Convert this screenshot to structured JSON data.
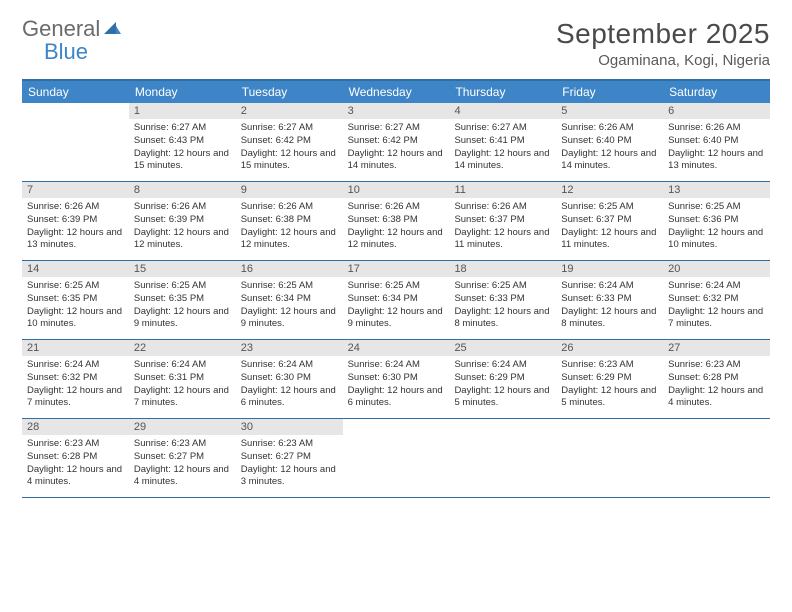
{
  "brand": {
    "line1": "General",
    "line2": "Blue"
  },
  "title": "September 2025",
  "location": "Ogaminana, Kogi, Nigeria",
  "colors": {
    "header_bar": "#3d85c6",
    "border": "#2f6fa8",
    "daynum_bg": "#e6e6e6",
    "text": "#3a3a3a",
    "title_text": "#4a4a4a"
  },
  "dow": [
    "Sunday",
    "Monday",
    "Tuesday",
    "Wednesday",
    "Thursday",
    "Friday",
    "Saturday"
  ],
  "layout": {
    "first_weekday_index": 1,
    "days_in_month": 30,
    "weeks": 5
  },
  "days": {
    "1": {
      "sunrise": "6:27 AM",
      "sunset": "6:43 PM",
      "daylight": "12 hours and 15 minutes."
    },
    "2": {
      "sunrise": "6:27 AM",
      "sunset": "6:42 PM",
      "daylight": "12 hours and 15 minutes."
    },
    "3": {
      "sunrise": "6:27 AM",
      "sunset": "6:42 PM",
      "daylight": "12 hours and 14 minutes."
    },
    "4": {
      "sunrise": "6:27 AM",
      "sunset": "6:41 PM",
      "daylight": "12 hours and 14 minutes."
    },
    "5": {
      "sunrise": "6:26 AM",
      "sunset": "6:40 PM",
      "daylight": "12 hours and 14 minutes."
    },
    "6": {
      "sunrise": "6:26 AM",
      "sunset": "6:40 PM",
      "daylight": "12 hours and 13 minutes."
    },
    "7": {
      "sunrise": "6:26 AM",
      "sunset": "6:39 PM",
      "daylight": "12 hours and 13 minutes."
    },
    "8": {
      "sunrise": "6:26 AM",
      "sunset": "6:39 PM",
      "daylight": "12 hours and 12 minutes."
    },
    "9": {
      "sunrise": "6:26 AM",
      "sunset": "6:38 PM",
      "daylight": "12 hours and 12 minutes."
    },
    "10": {
      "sunrise": "6:26 AM",
      "sunset": "6:38 PM",
      "daylight": "12 hours and 12 minutes."
    },
    "11": {
      "sunrise": "6:26 AM",
      "sunset": "6:37 PM",
      "daylight": "12 hours and 11 minutes."
    },
    "12": {
      "sunrise": "6:25 AM",
      "sunset": "6:37 PM",
      "daylight": "12 hours and 11 minutes."
    },
    "13": {
      "sunrise": "6:25 AM",
      "sunset": "6:36 PM",
      "daylight": "12 hours and 10 minutes."
    },
    "14": {
      "sunrise": "6:25 AM",
      "sunset": "6:35 PM",
      "daylight": "12 hours and 10 minutes."
    },
    "15": {
      "sunrise": "6:25 AM",
      "sunset": "6:35 PM",
      "daylight": "12 hours and 9 minutes."
    },
    "16": {
      "sunrise": "6:25 AM",
      "sunset": "6:34 PM",
      "daylight": "12 hours and 9 minutes."
    },
    "17": {
      "sunrise": "6:25 AM",
      "sunset": "6:34 PM",
      "daylight": "12 hours and 9 minutes."
    },
    "18": {
      "sunrise": "6:25 AM",
      "sunset": "6:33 PM",
      "daylight": "12 hours and 8 minutes."
    },
    "19": {
      "sunrise": "6:24 AM",
      "sunset": "6:33 PM",
      "daylight": "12 hours and 8 minutes."
    },
    "20": {
      "sunrise": "6:24 AM",
      "sunset": "6:32 PM",
      "daylight": "12 hours and 7 minutes."
    },
    "21": {
      "sunrise": "6:24 AM",
      "sunset": "6:32 PM",
      "daylight": "12 hours and 7 minutes."
    },
    "22": {
      "sunrise": "6:24 AM",
      "sunset": "6:31 PM",
      "daylight": "12 hours and 7 minutes."
    },
    "23": {
      "sunrise": "6:24 AM",
      "sunset": "6:30 PM",
      "daylight": "12 hours and 6 minutes."
    },
    "24": {
      "sunrise": "6:24 AM",
      "sunset": "6:30 PM",
      "daylight": "12 hours and 6 minutes."
    },
    "25": {
      "sunrise": "6:24 AM",
      "sunset": "6:29 PM",
      "daylight": "12 hours and 5 minutes."
    },
    "26": {
      "sunrise": "6:23 AM",
      "sunset": "6:29 PM",
      "daylight": "12 hours and 5 minutes."
    },
    "27": {
      "sunrise": "6:23 AM",
      "sunset": "6:28 PM",
      "daylight": "12 hours and 4 minutes."
    },
    "28": {
      "sunrise": "6:23 AM",
      "sunset": "6:28 PM",
      "daylight": "12 hours and 4 minutes."
    },
    "29": {
      "sunrise": "6:23 AM",
      "sunset": "6:27 PM",
      "daylight": "12 hours and 4 minutes."
    },
    "30": {
      "sunrise": "6:23 AM",
      "sunset": "6:27 PM",
      "daylight": "12 hours and 3 minutes."
    }
  },
  "labels": {
    "sunrise": "Sunrise:",
    "sunset": "Sunset:",
    "daylight": "Daylight:"
  }
}
